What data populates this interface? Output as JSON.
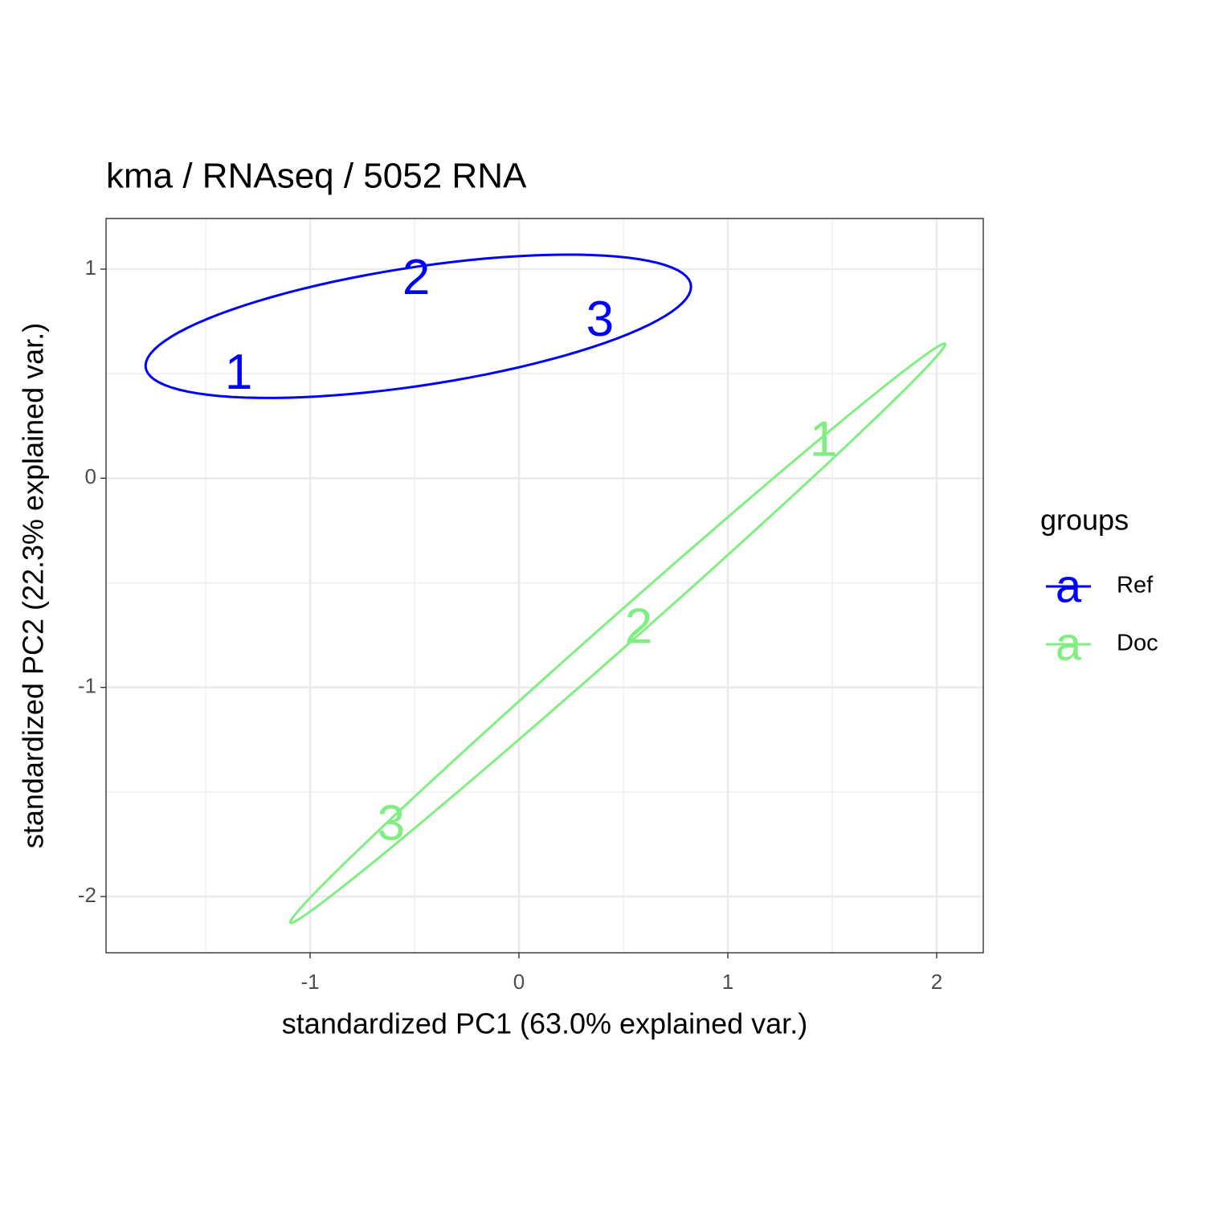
{
  "chart_data": {
    "type": "scatter",
    "title": "kma / RNAseq / 5052  RNA",
    "x_label": "standardized PC1 (63.0% explained var.)",
    "y_label": "standardized PC2 (22.3% explained var.)",
    "legend_title": "groups",
    "legend_key": "a",
    "legend_position": "right",
    "grid": true,
    "xlim": [
      -1.977,
      2.223
    ],
    "ylim": [
      -2.269,
      1.242
    ],
    "xticks": [
      -1,
      0,
      1,
      2
    ],
    "yticks": [
      -2,
      -1,
      0,
      1
    ],
    "series": [
      {
        "name": "Ref",
        "color": "#0000FF",
        "labels": [
          "1",
          "2",
          "3"
        ],
        "x": [
          -1.342,
          -0.492,
          0.388
        ],
        "values": [
          0.491,
          0.944,
          0.745
        ]
      },
      {
        "name": "Doc",
        "color": "#80EE80",
        "labels": [
          "1",
          "2",
          "3"
        ],
        "x": [
          1.458,
          0.573,
          -0.612
        ],
        "values": [
          0.169,
          -0.726,
          -1.666
        ]
      }
    ]
  }
}
